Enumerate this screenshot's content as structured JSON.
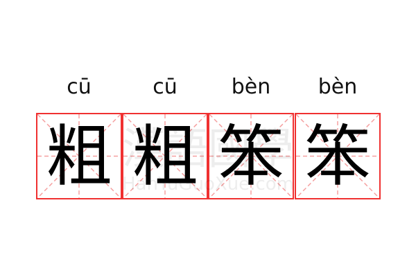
{
  "entries": [
    {
      "pinyin": "cū",
      "char": "粗"
    },
    {
      "pinyin": "cū",
      "char": "粗"
    },
    {
      "pinyin": "bèn",
      "char": "笨"
    },
    {
      "pinyin": "bèn",
      "char": "笨"
    }
  ],
  "watermark": {
    "chinese": "漢語國學",
    "latin": "HanYuGuoXue.com"
  },
  "colors": {
    "border": "#f03030",
    "guide": "#f5a0a0",
    "text": "#000000"
  }
}
